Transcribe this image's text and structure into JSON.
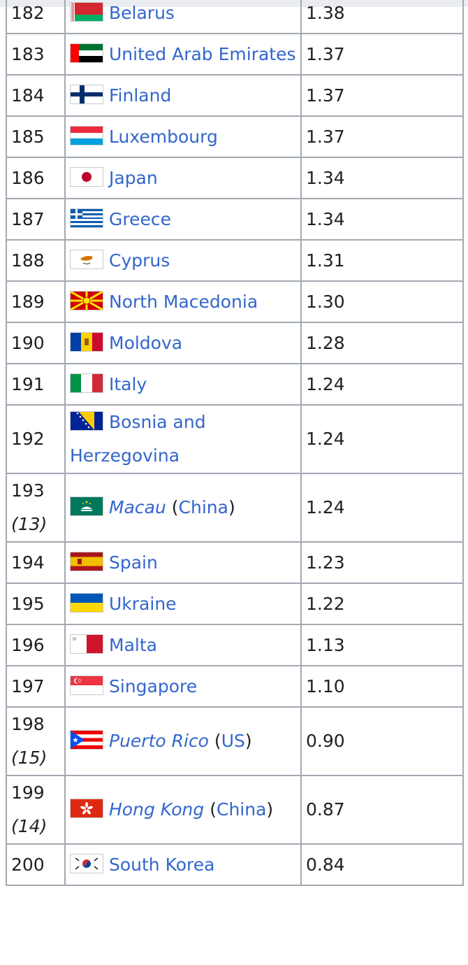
{
  "rows": [
    {
      "rank": "182",
      "sub": "",
      "country": "Belarus",
      "italic": false,
      "note_open": "",
      "note_link": "",
      "note_close": "",
      "rate": "1.38",
      "flag": "belarus-flag-icon"
    },
    {
      "rank": "183",
      "sub": "",
      "country": "United Arab Emirates",
      "italic": false,
      "note_open": "",
      "note_link": "",
      "note_close": "",
      "rate": "1.37",
      "flag": "uae-flag-icon"
    },
    {
      "rank": "184",
      "sub": "",
      "country": "Finland",
      "italic": false,
      "note_open": "",
      "note_link": "",
      "note_close": "",
      "rate": "1.37",
      "flag": "finland-flag-icon"
    },
    {
      "rank": "185",
      "sub": "",
      "country": "Luxembourg",
      "italic": false,
      "note_open": "",
      "note_link": "",
      "note_close": "",
      "rate": "1.37",
      "flag": "luxembourg-flag-icon"
    },
    {
      "rank": "186",
      "sub": "",
      "country": "Japan",
      "italic": false,
      "note_open": "",
      "note_link": "",
      "note_close": "",
      "rate": "1.34",
      "flag": "japan-flag-icon"
    },
    {
      "rank": "187",
      "sub": "",
      "country": "Greece",
      "italic": false,
      "note_open": "",
      "note_link": "",
      "note_close": "",
      "rate": "1.34",
      "flag": "greece-flag-icon"
    },
    {
      "rank": "188",
      "sub": "",
      "country": "Cyprus",
      "italic": false,
      "note_open": "",
      "note_link": "",
      "note_close": "",
      "rate": "1.31",
      "flag": "cyprus-flag-icon"
    },
    {
      "rank": "189",
      "sub": "",
      "country": "North Macedonia",
      "italic": false,
      "note_open": "",
      "note_link": "",
      "note_close": "",
      "rate": "1.30",
      "flag": "north-macedonia-flag-icon"
    },
    {
      "rank": "190",
      "sub": "",
      "country": "Moldova",
      "italic": false,
      "note_open": "",
      "note_link": "",
      "note_close": "",
      "rate": "1.28",
      "flag": "moldova-flag-icon"
    },
    {
      "rank": "191",
      "sub": "",
      "country": "Italy",
      "italic": false,
      "note_open": "",
      "note_link": "",
      "note_close": "",
      "rate": "1.24",
      "flag": "italy-flag-icon"
    },
    {
      "rank": "192",
      "sub": "",
      "country": "Bosnia and Herzegovina",
      "italic": false,
      "note_open": "",
      "note_link": "",
      "note_close": "",
      "rate": "1.24",
      "flag": "bosnia-flag-icon"
    },
    {
      "rank": "193",
      "sub": "(13)",
      "country": "Macau",
      "italic": true,
      "note_open": " (",
      "note_link": "China",
      "note_close": ")",
      "rate": "1.24",
      "flag": "macau-flag-icon"
    },
    {
      "rank": "194",
      "sub": "",
      "country": "Spain",
      "italic": false,
      "note_open": "",
      "note_link": "",
      "note_close": "",
      "rate": "1.23",
      "flag": "spain-flag-icon"
    },
    {
      "rank": "195",
      "sub": "",
      "country": "Ukraine",
      "italic": false,
      "note_open": "",
      "note_link": "",
      "note_close": "",
      "rate": "1.22",
      "flag": "ukraine-flag-icon"
    },
    {
      "rank": "196",
      "sub": "",
      "country": "Malta",
      "italic": false,
      "note_open": "",
      "note_link": "",
      "note_close": "",
      "rate": "1.13",
      "flag": "malta-flag-icon"
    },
    {
      "rank": "197",
      "sub": "",
      "country": "Singapore",
      "italic": false,
      "note_open": "",
      "note_link": "",
      "note_close": "",
      "rate": "1.10",
      "flag": "singapore-flag-icon"
    },
    {
      "rank": "198",
      "sub": "(15)",
      "country": "Puerto Rico",
      "italic": true,
      "note_open": " (",
      "note_link": "US",
      "note_close": ")",
      "rate": "0.90",
      "flag": "puerto-rico-flag-icon"
    },
    {
      "rank": "199",
      "sub": "(14)",
      "country": "Hong Kong",
      "italic": true,
      "note_open": " (",
      "note_link": "China",
      "note_close": ")",
      "rate": "0.87",
      "flag": "hong-kong-flag-icon"
    },
    {
      "rank": "200",
      "sub": "",
      "country": "South Korea",
      "italic": false,
      "note_open": "",
      "note_link": "",
      "note_close": "",
      "rate": "0.84",
      "flag": "south-korea-flag-icon"
    }
  ],
  "colors": {
    "link": "#3366cc",
    "border": "#a2a9b1",
    "text": "#202122"
  }
}
